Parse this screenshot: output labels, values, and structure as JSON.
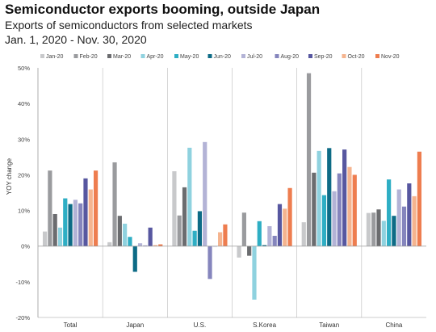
{
  "chart_data": {
    "type": "bar",
    "title": "Semiconductor exports booming, outside Japan",
    "subtitle": "Exports of semiconductors from selected markets",
    "date_range": "Jan. 1, 2020 - Nov. 30, 2020",
    "ylabel": "YOY change",
    "xlabel": "",
    "ylim": [
      -20,
      50
    ],
    "yticks": [
      "50%",
      "40%",
      "30%",
      "20%",
      "10%",
      "0%",
      "-10%",
      "-20%"
    ],
    "legend_position": "top",
    "grid": false,
    "categories": [
      "Total",
      "Japan",
      "U.S.",
      "S.Korea",
      "Taiwan",
      "China"
    ],
    "series": [
      {
        "name": "Jan-20",
        "color": "#c8c9cb",
        "values": [
          4.1,
          1.1,
          21.0,
          -3.2,
          6.7,
          9.3
        ]
      },
      {
        "name": "Feb-20",
        "color": "#9a9b9e",
        "values": [
          21.2,
          23.5,
          8.6,
          9.4,
          48.5,
          9.4
        ]
      },
      {
        "name": "Mar-20",
        "color": "#6b6c6f",
        "values": [
          9.0,
          8.5,
          16.5,
          -2.7,
          20.6,
          10.3
        ]
      },
      {
        "name": "Apr-20",
        "color": "#8fd2df",
        "values": [
          5.2,
          6.3,
          27.6,
          -15.0,
          26.7,
          7.1
        ]
      },
      {
        "name": "May-20",
        "color": "#2eaec4",
        "values": [
          13.4,
          2.6,
          4.3,
          7.0,
          14.3,
          18.7
        ]
      },
      {
        "name": "Jun-20",
        "color": "#0d6b86",
        "values": [
          11.8,
          -7.2,
          9.8,
          0.3,
          27.5,
          8.5
        ]
      },
      {
        "name": "Jul-20",
        "color": "#b3b3d6",
        "values": [
          13.0,
          0.8,
          29.2,
          5.6,
          15.4,
          15.9
        ]
      },
      {
        "name": "Aug-20",
        "color": "#8585bd",
        "values": [
          12.0,
          0.2,
          -9.2,
          2.9,
          20.4,
          11.1
        ]
      },
      {
        "name": "Sep-20",
        "color": "#5757a0",
        "values": [
          19.0,
          5.2,
          0.0,
          11.8,
          27.1,
          17.6
        ]
      },
      {
        "name": "Oct-20",
        "color": "#f5b48f",
        "values": [
          15.9,
          0.3,
          3.9,
          10.5,
          22.2,
          14.0
        ]
      },
      {
        "name": "Nov-20",
        "color": "#ee7d4f",
        "values": [
          21.2,
          0.5,
          6.1,
          16.3,
          20.0,
          26.5
        ]
      }
    ]
  }
}
